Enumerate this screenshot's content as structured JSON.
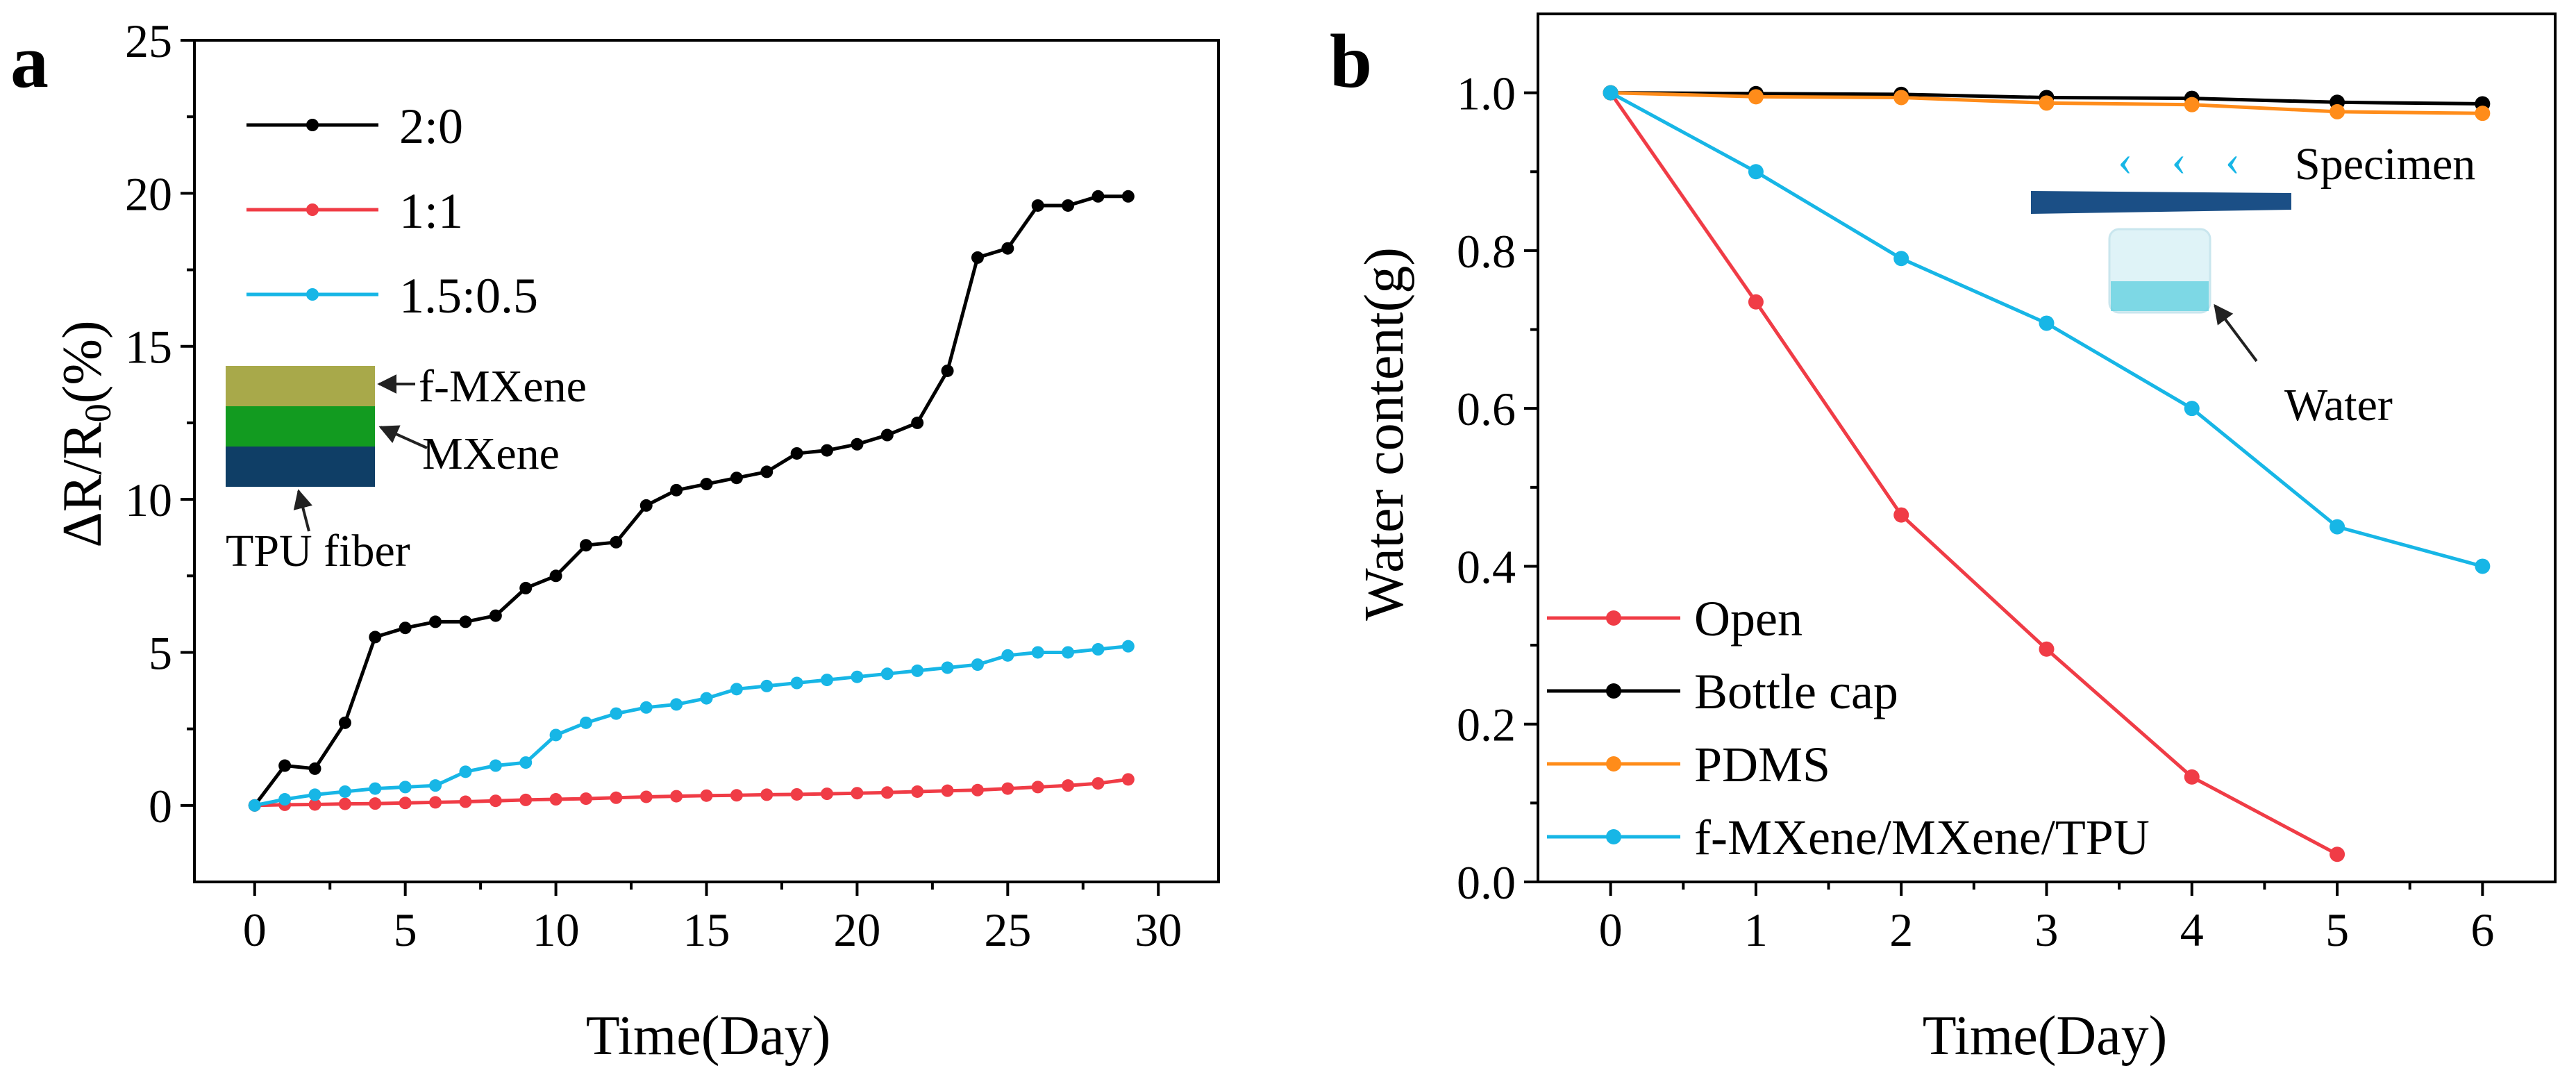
{
  "colors": {
    "black": "#000000",
    "red": "#f03c46",
    "cyan": "#17b6e6",
    "orange": "#ff8c1a",
    "olive": "#a8a94a",
    "green": "#129b20",
    "navy": "#0f3e66",
    "specimen": "#1b4f86",
    "water": "#5ccfdf"
  },
  "chart_data": [
    {
      "panel_label": "a",
      "type": "line",
      "title": "",
      "xlabel": "Time(Day)",
      "ylabel": "ΔR/R0(%)",
      "ylabel_parts": {
        "main": "ΔR/R",
        "sub": "0",
        "tail": "(%)"
      },
      "xlim": [
        -2,
        32
      ],
      "ylim": [
        -2.5,
        25
      ],
      "xticks": [
        0,
        5,
        10,
        15,
        20,
        25,
        30
      ],
      "yticks": [
        0,
        5,
        10,
        15,
        20,
        25
      ],
      "grid": false,
      "legend_position": "top-left",
      "series": [
        {
          "name": "2:0",
          "color_key": "black",
          "x": [
            0,
            1,
            2,
            3,
            4,
            5,
            6,
            7,
            8,
            9,
            10,
            11,
            12,
            13,
            14,
            15,
            16,
            17,
            18,
            19,
            20,
            21,
            22,
            23,
            24,
            25,
            26,
            27,
            28,
            29
          ],
          "y": [
            0,
            1.3,
            1.2,
            2.7,
            5.5,
            5.8,
            6.0,
            6.0,
            6.2,
            7.1,
            7.5,
            8.5,
            8.6,
            9.8,
            10.3,
            10.5,
            10.7,
            10.9,
            11.5,
            11.6,
            11.8,
            12.1,
            12.5,
            14.2,
            17.9,
            18.2,
            19.6,
            19.6,
            19.9,
            19.9
          ]
        },
        {
          "name": "1:1",
          "color_key": "red",
          "x": [
            0,
            1,
            2,
            3,
            4,
            5,
            6,
            7,
            8,
            9,
            10,
            11,
            12,
            13,
            14,
            15,
            16,
            17,
            18,
            19,
            20,
            21,
            22,
            23,
            24,
            25,
            26,
            27,
            28,
            29
          ],
          "y": [
            0,
            0.02,
            0.03,
            0.05,
            0.06,
            0.08,
            0.1,
            0.12,
            0.15,
            0.18,
            0.2,
            0.22,
            0.25,
            0.28,
            0.3,
            0.32,
            0.33,
            0.35,
            0.36,
            0.38,
            0.4,
            0.42,
            0.45,
            0.48,
            0.5,
            0.55,
            0.6,
            0.65,
            0.72,
            0.85
          ]
        },
        {
          "name": "1.5:0.5",
          "color_key": "cyan",
          "x": [
            0,
            1,
            2,
            3,
            4,
            5,
            6,
            7,
            8,
            9,
            10,
            11,
            12,
            13,
            14,
            15,
            16,
            17,
            18,
            19,
            20,
            21,
            22,
            23,
            24,
            25,
            26,
            27,
            28,
            29
          ],
          "y": [
            0,
            0.2,
            0.35,
            0.45,
            0.55,
            0.6,
            0.65,
            1.1,
            1.3,
            1.4,
            2.3,
            2.7,
            3.0,
            3.2,
            3.3,
            3.5,
            3.8,
            3.9,
            4.0,
            4.1,
            4.2,
            4.3,
            4.4,
            4.5,
            4.6,
            4.9,
            5.0,
            5.0,
            5.1,
            5.2
          ]
        }
      ],
      "inset": {
        "layers": [
          {
            "label": "f-MXene",
            "color_key": "olive"
          },
          {
            "label": "MXene",
            "color_key": "green"
          },
          {
            "label": "TPU fiber",
            "color_key": "navy"
          }
        ]
      }
    },
    {
      "panel_label": "b",
      "type": "line",
      "title": "",
      "xlabel": "Time(Day)",
      "ylabel": "Water content(g)",
      "xlim": [
        -0.5,
        6.5
      ],
      "ylim": [
        0,
        1.1
      ],
      "xticks": [
        0,
        1,
        2,
        3,
        4,
        5,
        6
      ],
      "yticks": [
        0.0,
        0.2,
        0.4,
        0.6,
        0.8,
        1.0
      ],
      "ytick_labels": [
        "0.0",
        "0.2",
        "0.4",
        "0.6",
        "0.8",
        "1.0"
      ],
      "grid": false,
      "legend_position": "bottom-left",
      "series": [
        {
          "name": "Open",
          "color_key": "red",
          "x": [
            0,
            1,
            2,
            3,
            4,
            5
          ],
          "y": [
            1.0,
            0.735,
            0.465,
            0.295,
            0.133,
            0.035
          ]
        },
        {
          "name": "Bottle cap",
          "color_key": "black",
          "x": [
            0,
            1,
            2,
            3,
            4,
            5,
            6
          ],
          "y": [
            1.0,
            0.999,
            0.998,
            0.994,
            0.993,
            0.988,
            0.986
          ]
        },
        {
          "name": "PDMS",
          "color_key": "orange",
          "x": [
            0,
            1,
            2,
            3,
            4,
            5,
            6
          ],
          "y": [
            1.0,
            0.995,
            0.994,
            0.987,
            0.985,
            0.976,
            0.974
          ]
        },
        {
          "name": "f-MXene/MXene/TPU",
          "color_key": "cyan",
          "x": [
            0,
            1,
            2,
            3,
            4,
            5,
            6
          ],
          "y": [
            1.0,
            0.9,
            0.79,
            0.708,
            0.6,
            0.45,
            0.4
          ]
        }
      ],
      "annotations": {
        "specimen": "Specimen",
        "water": "Water",
        "vapor": "‹ ‹ ‹"
      }
    }
  ]
}
